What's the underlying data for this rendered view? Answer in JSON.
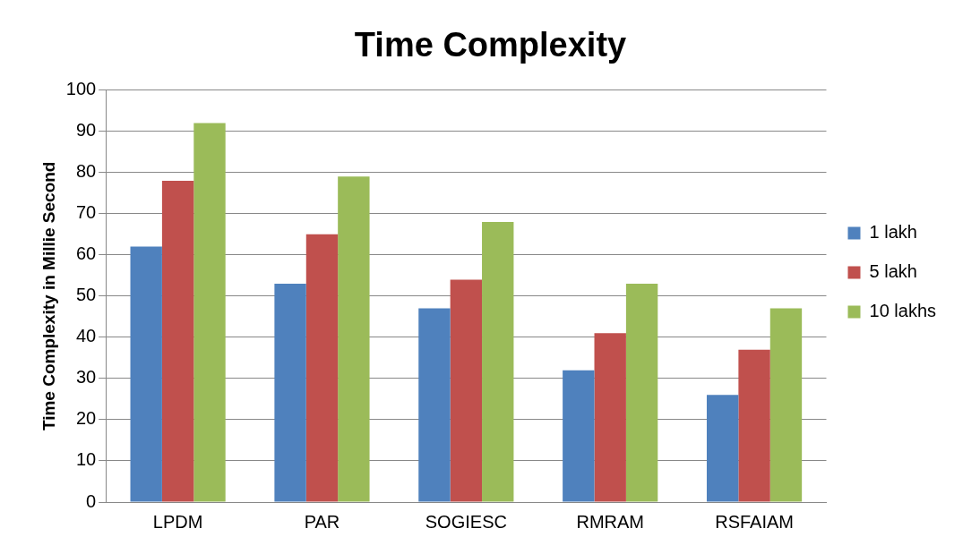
{
  "chart_data": {
    "type": "bar",
    "title": "Time Complexity",
    "ylabel": "Time Complexity in Millie Second",
    "categories": [
      "LPDM",
      "PAR",
      "SOGIESC",
      "RMRAM",
      "RSFAIAM"
    ],
    "series": [
      {
        "name": "1 lakh",
        "color": "#4f81bd",
        "values": [
          62,
          53,
          47,
          32,
          26
        ]
      },
      {
        "name": "5 lakh",
        "color": "#c0504d",
        "values": [
          78,
          65,
          54,
          41,
          37
        ]
      },
      {
        "name": "10 lakhs",
        "color": "#9bbb59",
        "values": [
          92,
          79,
          68,
          53,
          47
        ]
      }
    ],
    "ylim": [
      0,
      100
    ],
    "yticks": [
      0,
      10,
      20,
      30,
      40,
      50,
      60,
      70,
      80,
      90,
      100
    ],
    "grid": "y",
    "legend": "right"
  }
}
